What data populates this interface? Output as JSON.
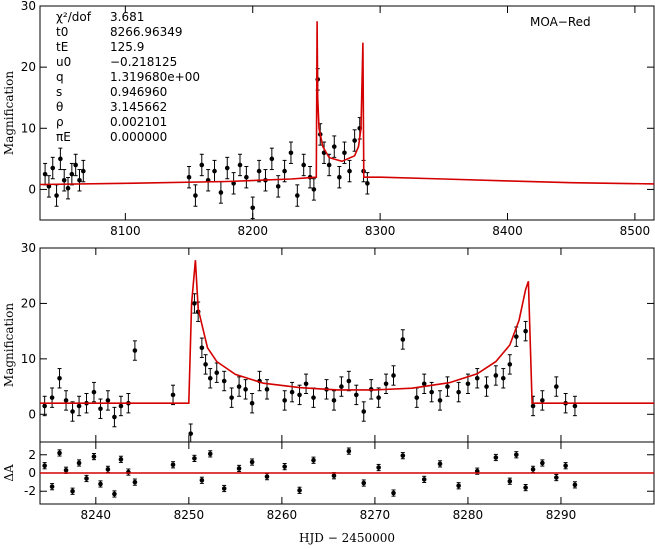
{
  "figure": {
    "observatory_label": "MOA−Red",
    "xlabel": "HJD − 2450000",
    "ylabel_magnification": "Magnification",
    "ylabel_residual": "ΔA"
  },
  "fit_parameters": [
    {
      "name": "χ²/dof",
      "value": "3.681"
    },
    {
      "name": "t0",
      "value": "8266.96349"
    },
    {
      "name": "tE",
      "value": "125.9"
    },
    {
      "name": "u0",
      "value": "−0.218125"
    },
    {
      "name": "q",
      "value": "1.319680e+00"
    },
    {
      "name": "s",
      "value": "0.946960"
    },
    {
      "name": "θ",
      "value": "3.145662"
    },
    {
      "name": "ρ",
      "value": "0.002101"
    },
    {
      "name": "πE",
      "value": "0.000000"
    }
  ],
  "colors": {
    "model": "#d40000",
    "data": "#000000"
  },
  "chart_data": [
    {
      "id": "full-lightcurve",
      "type": "scatter",
      "xlabel": "",
      "ylabel": "Magnification",
      "xlim": [
        8033,
        8515
      ],
      "ylim": [
        -5,
        30
      ],
      "xticks": [
        8100,
        8200,
        8300,
        8400,
        8500
      ],
      "yticks": [
        0,
        10,
        20,
        30
      ],
      "series": [
        {
          "kind": "model-line",
          "x": [
            8033,
            8100,
            8180,
            8230,
            8249.9,
            8250.5,
            8251,
            8252,
            8255,
            8260,
            8270,
            8280,
            8283,
            8285,
            8286.5,
            8287.2,
            8300,
            8350,
            8400,
            8450,
            8515
          ],
          "y": [
            0.8,
            1.0,
            1.3,
            1.7,
            2.0,
            27.5,
            15,
            10,
            7,
            5.2,
            4.6,
            5.5,
            7,
            10,
            24,
            2.0,
            2.0,
            1.7,
            1.4,
            1.1,
            0.9
          ]
        },
        {
          "kind": "data-points",
          "x": [
            8037,
            8040,
            8043,
            8046,
            8049,
            8052,
            8055,
            8058,
            8061,
            8064,
            8067,
            8150,
            8155,
            8160,
            8165,
            8170,
            8175,
            8180,
            8185,
            8190,
            8195,
            8200,
            8205,
            8210,
            8215,
            8220,
            8225,
            8230,
            8235,
            8240,
            8245,
            8248,
            8251,
            8253,
            8256,
            8260,
            8264,
            8268,
            8272,
            8276,
            8280,
            8284,
            8287,
            8290
          ],
          "y": [
            2.5,
            0.5,
            3.5,
            -1,
            5,
            1.5,
            0.2,
            2.5,
            4,
            1.5,
            3,
            2,
            -1,
            4,
            1.5,
            3,
            -0.5,
            3.5,
            1,
            4,
            2,
            -3,
            3,
            1.5,
            5,
            0.5,
            3,
            6,
            -1,
            4,
            2,
            0,
            18,
            9,
            6,
            4,
            7,
            2,
            6,
            3,
            8,
            10,
            3,
            1
          ]
        }
      ]
    },
    {
      "id": "zoom-lightcurve",
      "type": "scatter",
      "xlabel": "",
      "ylabel": "Magnification",
      "xlim": [
        8234,
        8300
      ],
      "ylim": [
        -5,
        30
      ],
      "xticks": [
        8240,
        8250,
        8260,
        8270,
        8280,
        8290
      ],
      "yticks": [
        0,
        10,
        20,
        30
      ],
      "series": [
        {
          "kind": "model-line",
          "x": [
            8234,
            8250.0,
            8250.3,
            8250.7,
            8251,
            8252,
            8253,
            8255,
            8258,
            8262,
            8266,
            8270,
            8274,
            8278,
            8281,
            8283,
            8284.5,
            8285.5,
            8286.2,
            8286.5,
            8286.9,
            8288,
            8295,
            8300
          ],
          "y": [
            2.0,
            2.0,
            20,
            27.8,
            19,
            12,
            9.5,
            7.2,
            5.6,
            4.8,
            4.4,
            4.4,
            4.7,
            5.7,
            7.3,
            9.5,
            12.5,
            17,
            22.5,
            24,
            2.0,
            2.0,
            2.0,
            2.0
          ]
        },
        {
          "kind": "data-points",
          "x": [
            8234.5,
            8235.3,
            8236.1,
            8236.8,
            8237.5,
            8238.2,
            8239.0,
            8239.8,
            8240.5,
            8241.3,
            8242.0,
            8242.7,
            8243.5,
            8244.2,
            8248.3,
            8250.2,
            8250.6,
            8251.0,
            8251.4,
            8251.8,
            8252.3,
            8253.0,
            8253.8,
            8254.6,
            8255.4,
            8256.1,
            8256.8,
            8257.6,
            8258.4,
            8260.3,
            8261.1,
            8261.9,
            8262.6,
            8263.4,
            8264.8,
            8265.6,
            8266.4,
            8267.2,
            8268.0,
            8268.8,
            8269.6,
            8270.4,
            8271.2,
            8272.0,
            8273.0,
            8274.5,
            8275.3,
            8276.1,
            8277.0,
            8277.8,
            8279.0,
            8280.0,
            8281.0,
            8282.0,
            8283.0,
            8283.8,
            8284.5,
            8285.2,
            8286.2,
            8287.0,
            8288.0,
            8289.5,
            8290.5,
            8291.5
          ],
          "y": [
            1.5,
            3.0,
            6.5,
            2.5,
            0.5,
            1.5,
            2.0,
            4.0,
            1.0,
            2.5,
            -0.5,
            1.5,
            2.0,
            11.5,
            3.5,
            -3.5,
            20,
            18.5,
            12,
            9,
            6.5,
            7.5,
            6.0,
            3.0,
            5.0,
            4.5,
            2.0,
            6.0,
            4.5,
            2.5,
            4.0,
            3.5,
            5.5,
            3.0,
            4.5,
            2.5,
            5.0,
            6.0,
            3.5,
            0.5,
            4.5,
            3.0,
            5.5,
            7.0,
            13.5,
            3.0,
            5.5,
            4.0,
            2.5,
            5.0,
            4.0,
            5.5,
            6.5,
            5.0,
            7.0,
            6.5,
            9.0,
            14,
            15,
            1.5,
            2.5,
            5.0,
            2.0,
            1.5
          ]
        }
      ]
    },
    {
      "id": "residuals",
      "type": "scatter",
      "xlabel": "HJD − 2450000",
      "ylabel": "ΔA",
      "xlim": [
        8234,
        8300
      ],
      "ylim": [
        -3.4,
        3.4
      ],
      "xticks": [
        8240,
        8250,
        8260,
        8270,
        8280,
        8290
      ],
      "yticks": [
        -2,
        0,
        2
      ],
      "series": [
        {
          "kind": "model-line",
          "x": [
            8234,
            8300
          ],
          "y": [
            0,
            0
          ]
        },
        {
          "kind": "data-points",
          "x": [
            8234.5,
            8235.3,
            8236.1,
            8236.8,
            8237.5,
            8238.2,
            8239.0,
            8239.8,
            8240.5,
            8241.3,
            8242.0,
            8242.7,
            8243.5,
            8244.2,
            8248.3,
            8250.6,
            8251.4,
            8252.3,
            8253.8,
            8255.4,
            8256.8,
            8258.4,
            8260.3,
            8261.9,
            8263.4,
            8265.6,
            8267.2,
            8268.8,
            8270.4,
            8272.0,
            8273.0,
            8275.3,
            8277.0,
            8279.0,
            8281.0,
            8283.0,
            8284.5,
            8285.2,
            8286.2,
            8287.0,
            8288.0,
            8289.5,
            8290.5,
            8291.5
          ],
          "y": [
            0.8,
            -1.5,
            2.2,
            0.3,
            -2.0,
            1.1,
            -0.6,
            1.8,
            -1.2,
            0.4,
            -2.3,
            1.5,
            0.1,
            -1.0,
            0.9,
            1.6,
            -0.8,
            2.1,
            -1.7,
            0.5,
            1.2,
            -0.4,
            0.7,
            -1.9,
            1.4,
            -0.3,
            2.4,
            -1.1,
            0.6,
            -2.2,
            1.9,
            -0.7,
            1.0,
            -1.4,
            0.2,
            1.7,
            -0.9,
            2.0,
            -1.6,
            0.4,
            1.1,
            -0.5,
            0.8,
            -1.3
          ]
        }
      ]
    }
  ]
}
